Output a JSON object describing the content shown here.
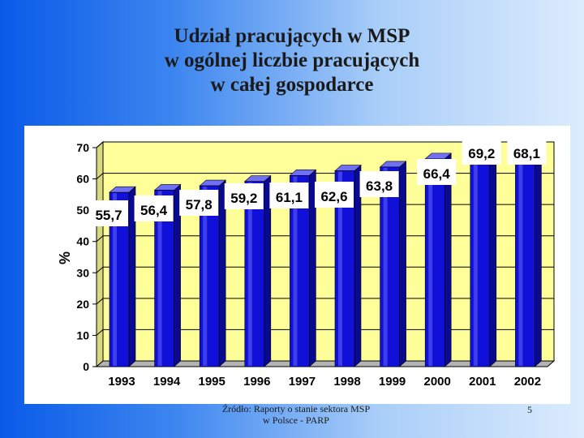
{
  "slide": {
    "title_lines": [
      "Udział pracujących w MSP",
      "w ogólnej liczbie pracujących",
      "w całej gospodarce"
    ],
    "footer_source_lines": [
      "Źródło: Raporty o stanie sektora MSP",
      "w Polsce - PARP"
    ],
    "page_number": "5"
  },
  "chart_data": {
    "type": "bar",
    "categories": [
      "1993",
      "1994",
      "1995",
      "1996",
      "1997",
      "1998",
      "1999",
      "2000",
      "2001",
      "2002"
    ],
    "values": [
      55.7,
      56.4,
      57.8,
      59.2,
      61.1,
      62.6,
      63.8,
      66.4,
      69.2,
      68.1
    ],
    "value_labels": [
      "55,7",
      "56,4",
      "57,8",
      "59,2",
      "61,1",
      "62,6",
      "63,8",
      "66,4",
      "69,2",
      "68,1"
    ],
    "title": "",
    "xlabel": "",
    "ylabel": "%",
    "ylim": [
      0,
      70
    ],
    "yticks": [
      0,
      10,
      20,
      30,
      40,
      50,
      60,
      70
    ],
    "grid": true,
    "legend": "none",
    "colors": {
      "bar": "#1010d8",
      "bar_highlight": "#4a4af0",
      "bar_top": "#7070f4",
      "plot_background": "#ffff99",
      "wall_side": "#d8d880",
      "floor": "#b3b3b3",
      "gridline": "#000000"
    }
  }
}
